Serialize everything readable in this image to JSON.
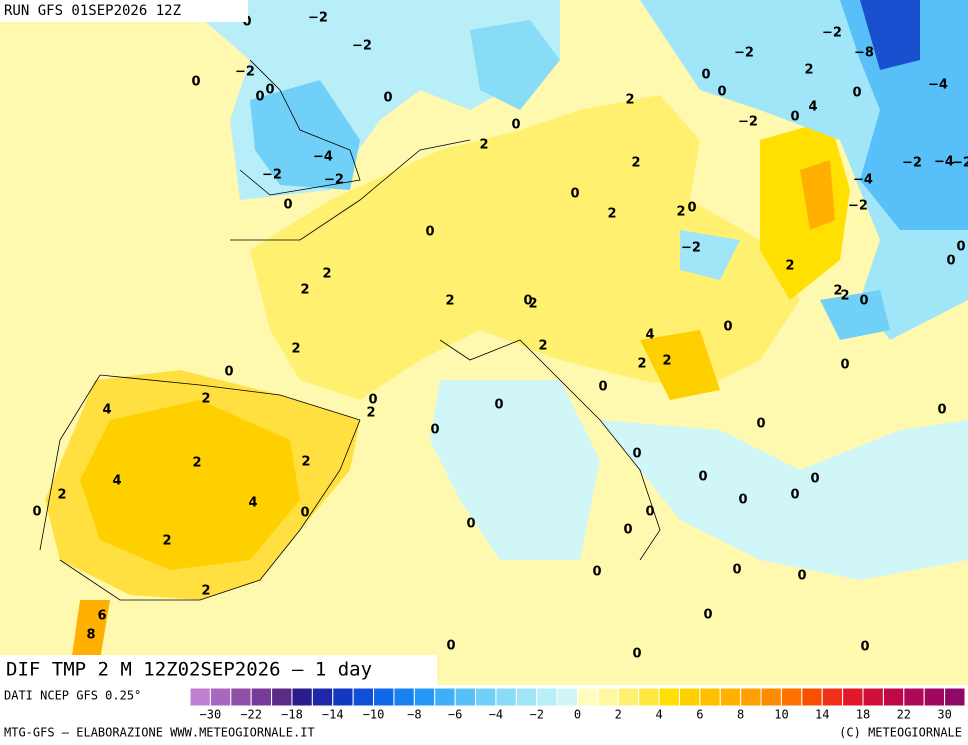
{
  "header": {
    "run": "RUN GFS 01SEP2026 12Z"
  },
  "map": {
    "title": "DIF TMP 2 M 12Z02SEP2026 — 1 day",
    "contour_labels": [
      "−2",
      "−2",
      "0",
      "0",
      "−2",
      "0",
      "0",
      "0",
      "−4",
      "−2",
      "−2",
      "0",
      "2",
      "0",
      "2",
      "2",
      "0",
      "2",
      "2",
      "0",
      "0",
      "−2",
      "0",
      "−2",
      "0",
      "2",
      "4",
      "−2",
      "−8",
      "0",
      "−4",
      "−2",
      "−4",
      "−2",
      "−4",
      "−2",
      "0",
      "0",
      "−2",
      "2",
      "2",
      "2",
      "0",
      "0",
      "2",
      "2",
      "2",
      "0",
      "2",
      "0",
      "4",
      "2",
      "2",
      "2",
      "2",
      "0",
      "0",
      "0",
      "0",
      "2",
      "2",
      "4",
      "0",
      "0",
      "0",
      "0",
      "2",
      "2",
      "0",
      "4",
      "0",
      "0",
      "2",
      "0",
      "0",
      "4",
      "0",
      "0",
      "0",
      "0",
      "0",
      "2",
      "0",
      "0",
      "0",
      "2",
      "0",
      "6",
      "8",
      "0",
      "0",
      "0"
    ]
  },
  "footer": {
    "source": "DATI NCEP GFS 0.25°",
    "credit": "MTG-GFS — ELABORAZIONE WWW.METEOGIORNALE.IT",
    "copyright": "(C) METEOGIORNALE"
  },
  "colorbar": {
    "colors": [
      "#c080d0",
      "#a868c0",
      "#9050a8",
      "#783c98",
      "#5a2c88",
      "#2a1c8c",
      "#1c28a8",
      "#1438c0",
      "#1050d8",
      "#1068e8",
      "#1880f0",
      "#2898f8",
      "#40aef8",
      "#58c0f8",
      "#70d0f8",
      "#88dcf8",
      "#a0e6f8",
      "#b8eef8",
      "#d0f6f8",
      "#fffcc0",
      "#fff8a0",
      "#fff070",
      "#ffe840",
      "#ffe000",
      "#ffd000",
      "#ffc000",
      "#ffb000",
      "#ffa000",
      "#ff8c00",
      "#ff7000",
      "#f85000",
      "#f03018",
      "#e01828",
      "#d01038",
      "#c00848",
      "#b00858",
      "#a00860",
      "#900868"
    ],
    "labels": [
      "−30",
      "−22",
      "−18",
      "−14",
      "−10",
      "−8",
      "−6",
      "−4",
      "−2",
      "0",
      "2",
      "4",
      "6",
      "8",
      "10",
      "14",
      "18",
      "22",
      "30"
    ]
  }
}
